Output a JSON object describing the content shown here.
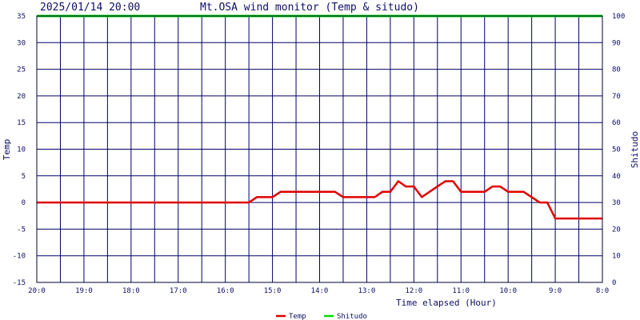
{
  "header": {
    "timestamp": "2025/01/14 20:00",
    "title": "Mt.OSA wind monitor (Temp & situdo)"
  },
  "chart_data": {
    "type": "line",
    "xlabel": "Time elapsed (Hour)",
    "ylabel_left": "Temp",
    "ylabel_right": "Shitudo",
    "x_range": [
      0,
      12
    ],
    "y_left_range": [
      -15,
      35
    ],
    "y_right_range": [
      0,
      100
    ],
    "y_left_ticks": [
      "35",
      "30",
      "25",
      "20",
      "15",
      "10",
      "5",
      "0",
      "-5",
      "-10",
      "-15"
    ],
    "y_right_ticks": [
      "100",
      "90",
      "80",
      "70",
      "60",
      "50",
      "40",
      "30",
      "20",
      "10",
      "0"
    ],
    "x_ticks": [
      "20:0",
      "19:0",
      "18:0",
      "17:0",
      "16:0",
      "15:0",
      "14:0",
      "13:0",
      "12:0",
      "11:0",
      "10:0",
      "9:0",
      "8:0"
    ],
    "grid": true,
    "legend_position": "bottom-center",
    "series": [
      {
        "name": "Temp",
        "axis": "left",
        "color": "#e00000",
        "points": [
          [
            0,
            0
          ],
          [
            4.5,
            0
          ],
          [
            4.67,
            1
          ],
          [
            5.0,
            1
          ],
          [
            5.17,
            2
          ],
          [
            6.33,
            2
          ],
          [
            6.5,
            1
          ],
          [
            7.17,
            1
          ],
          [
            7.33,
            2
          ],
          [
            7.5,
            2
          ],
          [
            7.67,
            4
          ],
          [
            7.83,
            3
          ],
          [
            8.0,
            3
          ],
          [
            8.17,
            1
          ],
          [
            8.33,
            2
          ],
          [
            8.5,
            3
          ],
          [
            8.67,
            4
          ],
          [
            8.83,
            4
          ],
          [
            9.0,
            2
          ],
          [
            9.5,
            2
          ],
          [
            9.67,
            3
          ],
          [
            9.83,
            3
          ],
          [
            10.0,
            2
          ],
          [
            10.33,
            2
          ],
          [
            10.5,
            1
          ],
          [
            10.67,
            0
          ],
          [
            10.83,
            0
          ],
          [
            11.0,
            -3
          ],
          [
            12.0,
            -3
          ]
        ]
      },
      {
        "name": "Shitudo",
        "axis": "right",
        "color": "#00e000",
        "points": [
          [
            0,
            100
          ],
          [
            12,
            100
          ]
        ]
      }
    ]
  }
}
